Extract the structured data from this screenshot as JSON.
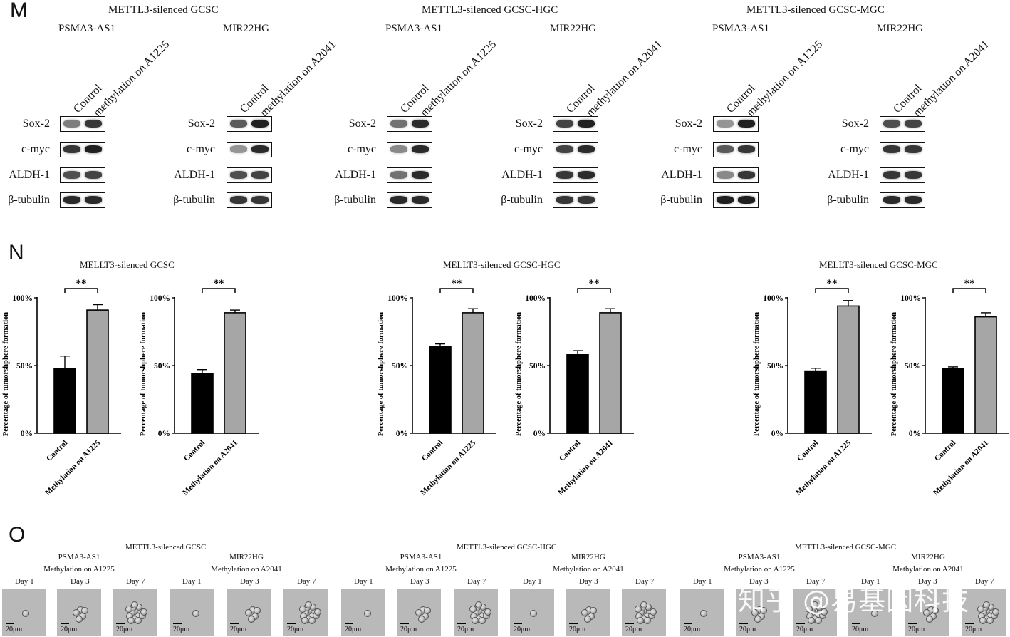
{
  "panel_letters": {
    "m": "M",
    "n": "N",
    "o": "O"
  },
  "panel_m": {
    "groups": [
      {
        "title": "METTL3-silenced GCSC",
        "genes": [
          "PSMA3-AS1",
          "MIR22HG"
        ]
      },
      {
        "title": "METTL3-silenced GCSC-HGC",
        "genes": [
          "PSMA3-AS1",
          "MIR22HG"
        ]
      },
      {
        "title": "METTL3-silenced GCSC-MGC",
        "genes": [
          "PSMA3-AS1",
          "MIR22HG"
        ]
      }
    ],
    "lane_labels": {
      "control": "Control",
      "a1225": "methylation on A1225",
      "a2041": "methylation on A2041"
    },
    "row_labels": [
      "Sox-2",
      "c-myc",
      "ALDH-1",
      "β-tubulin"
    ]
  },
  "panel_n": {
    "titles": [
      "MELLT3-silenced GCSC",
      "MELLT3-silenced GCSC-HGC",
      "MELLT3-silenced GCSC-MGC"
    ],
    "ylabel": "Percentage of tumorshphere formation",
    "yticks": [
      "0%",
      "50%",
      "100%"
    ],
    "significance": "**"
  },
  "chart_data": [
    {
      "type": "bar",
      "title": "MELLT3-silenced GCSC",
      "ylabel": "Percentage of tumorshphere formation",
      "categories": [
        "Control",
        "Methylation on A1225"
      ],
      "values": [
        48,
        91
      ],
      "errors": [
        9,
        4
      ],
      "ylim": [
        0,
        100
      ],
      "colors": [
        "#000000",
        "#a6a6a6"
      ],
      "annotation": "**"
    },
    {
      "type": "bar",
      "title": "MELLT3-silenced GCSC",
      "ylabel": "Percentage of tumorshphere formation",
      "categories": [
        "Control",
        "Methylation on A2041"
      ],
      "values": [
        44,
        89
      ],
      "errors": [
        3,
        2
      ],
      "ylim": [
        0,
        100
      ],
      "colors": [
        "#000000",
        "#a6a6a6"
      ],
      "annotation": "**"
    },
    {
      "type": "bar",
      "title": "MELLT3-silenced GCSC-HGC",
      "ylabel": "Percentage of tumorshphere formation",
      "categories": [
        "Control",
        "Methylation on A1225"
      ],
      "values": [
        64,
        89
      ],
      "errors": [
        2,
        3
      ],
      "ylim": [
        0,
        100
      ],
      "colors": [
        "#000000",
        "#a6a6a6"
      ],
      "annotation": "**"
    },
    {
      "type": "bar",
      "title": "MELLT3-silenced GCSC-HGC",
      "ylabel": "Percentage of tumorshphere formation",
      "categories": [
        "Control",
        "Methylation on A2041"
      ],
      "values": [
        58,
        89
      ],
      "errors": [
        3,
        3
      ],
      "ylim": [
        0,
        100
      ],
      "colors": [
        "#000000",
        "#a6a6a6"
      ],
      "annotation": "**"
    },
    {
      "type": "bar",
      "title": "MELLT3-silenced GCSC-MGC",
      "ylabel": "Percentage of tumorshphere formation",
      "categories": [
        "Control",
        "Methylation on A1225"
      ],
      "values": [
        46,
        94
      ],
      "errors": [
        2,
        4
      ],
      "ylim": [
        0,
        100
      ],
      "colors": [
        "#000000",
        "#a6a6a6"
      ],
      "annotation": "**"
    },
    {
      "type": "bar",
      "title": "MELLT3-silenced GCSC-MGC",
      "ylabel": "Percentage of tumorshphere formation",
      "categories": [
        "Control",
        "Methylation on A2041"
      ],
      "values": [
        48,
        86
      ],
      "errors": [
        1,
        3
      ],
      "ylim": [
        0,
        100
      ],
      "colors": [
        "#000000",
        "#a6a6a6"
      ],
      "annotation": "**"
    }
  ],
  "panel_o": {
    "groups": [
      {
        "title": "METTL3-silenced GCSC",
        "subs": [
          {
            "gene": "PSMA3-AS1",
            "mod": "Methylation on A1225"
          },
          {
            "gene": "MIR22HG",
            "mod": "Methylation on A2041"
          }
        ]
      },
      {
        "title": "METTL3-silenced GCSC-HGC",
        "subs": [
          {
            "gene": "PSMA3-AS1",
            "mod": "Methylation on A1225"
          },
          {
            "gene": "MIR22HG",
            "mod": "Methylation on A2041"
          }
        ]
      },
      {
        "title": "METTL3-silenced GCSC-MGC",
        "subs": [
          {
            "gene": "PSMA3-AS1",
            "mod": "Methylation on A1225"
          },
          {
            "gene": "MIR22HG",
            "mod": "Methylation on A2041"
          }
        ]
      }
    ],
    "days": [
      "Day 1",
      "Day 3",
      "Day 7"
    ],
    "scale_bar": "20μm"
  },
  "watermark": "知乎 @易基因科技"
}
